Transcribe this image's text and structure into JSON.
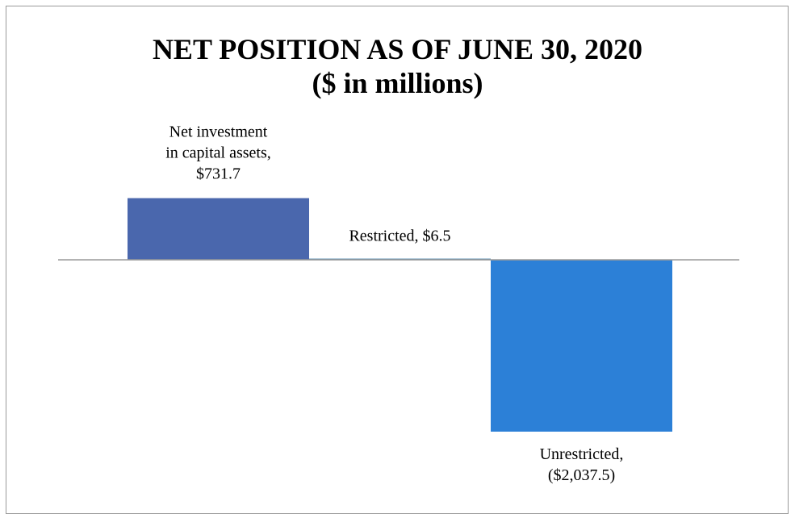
{
  "chart_data": {
    "type": "bar",
    "title": "NET POSITION AS OF JUNE 30, 2020",
    "subtitle": "($ in millions)",
    "xlabel": "",
    "ylabel": "",
    "categories": [
      "Net investment in capital assets",
      "Restricted",
      "Unrestricted"
    ],
    "values": [
      731.7,
      6.5,
      -2037.5
    ],
    "data_labels": [
      [
        "Net investment",
        "in capital assets,",
        "$731.7"
      ],
      [
        "Restricted, $6.5"
      ],
      [
        "Unrestricted,",
        "($2,037.5)"
      ]
    ],
    "colors": [
      "#4a67ad",
      "#5b8fb0",
      "#2c80d7"
    ],
    "axis_color": "#9a9a9a",
    "ylim": [
      -2037.5,
      731.7
    ],
    "grid": false,
    "legend": "none"
  }
}
